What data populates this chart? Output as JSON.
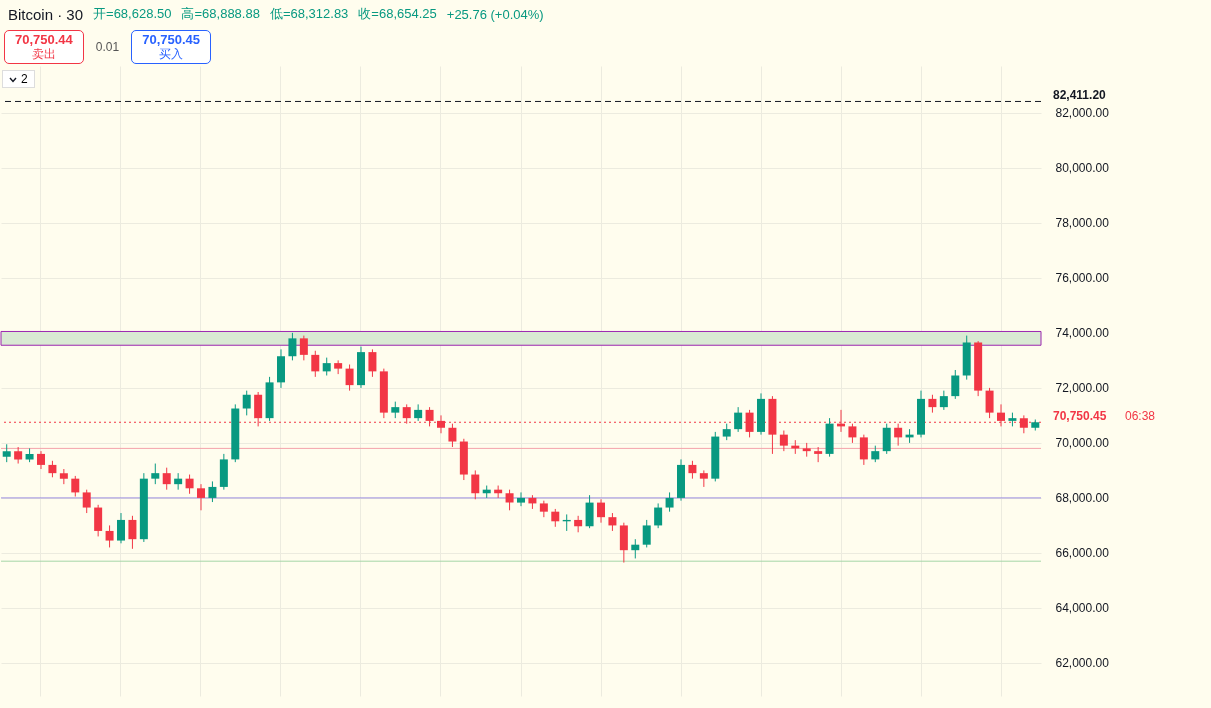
{
  "chart_data": {
    "type": "candlestick",
    "title": "Bitcoin · 30",
    "annotations": [
      "开=68,628.50",
      "高=68,888.88",
      "低=68,312.83",
      "收=68,654.25",
      "+25.76 (+0.04%)",
      "70,750.44",
      "卖出",
      "0.01",
      "70,750.45",
      "买入",
      "2",
      "06:38"
    ],
    "categories": [
      null,
      null,
      null,
      null,
      null,
      null,
      null,
      null,
      null,
      null,
      null,
      null,
      null,
      null,
      null,
      null,
      null,
      null,
      null,
      null,
      null,
      null,
      null,
      null,
      null,
      null,
      null,
      null,
      null,
      null,
      null,
      null,
      null,
      null,
      null,
      null,
      null,
      null,
      null,
      null,
      null,
      null,
      null,
      null,
      null,
      null,
      null,
      null,
      null,
      null,
      null,
      null,
      null,
      null,
      null,
      null,
      null,
      null,
      null,
      null,
      null,
      null,
      null,
      null,
      null,
      null,
      null,
      null,
      null,
      null,
      null,
      null,
      null,
      null,
      null,
      null,
      null,
      null,
      null,
      null,
      null,
      null,
      null,
      null,
      null,
      null,
      null,
      null,
      null,
      null,
      null
    ],
    "ohlc": [
      [
        69500,
        69950,
        69300,
        69700
      ],
      [
        69700,
        69850,
        69250,
        69400
      ],
      [
        69400,
        69800,
        69300,
        69600
      ],
      [
        69600,
        69700,
        69050,
        69200
      ],
      [
        69200,
        69350,
        68750,
        68900
      ],
      [
        68900,
        69050,
        68500,
        68700
      ],
      [
        68700,
        68800,
        68050,
        68200
      ],
      [
        68200,
        68300,
        67450,
        67650
      ],
      [
        67650,
        67750,
        66600,
        66800
      ],
      [
        66800,
        67000,
        66200,
        66450
      ],
      [
        66450,
        67450,
        66350,
        67200
      ],
      [
        67200,
        67350,
        66150,
        66500
      ],
      [
        66500,
        68900,
        66400,
        68700
      ],
      [
        68700,
        69250,
        68500,
        68900
      ],
      [
        68900,
        69100,
        68300,
        68500
      ],
      [
        68500,
        68900,
        68300,
        68700
      ],
      [
        68700,
        68850,
        68150,
        68350
      ],
      [
        68350,
        68500,
        67550,
        68000
      ],
      [
        68000,
        68600,
        67850,
        68400
      ],
      [
        68400,
        69600,
        68300,
        69400
      ],
      [
        69400,
        71400,
        69300,
        71250
      ],
      [
        71250,
        71900,
        71000,
        71750
      ],
      [
        71750,
        71850,
        70600,
        70900
      ],
      [
        70900,
        72400,
        70800,
        72200
      ],
      [
        72200,
        73400,
        72000,
        73150
      ],
      [
        73150,
        74000,
        73000,
        73800
      ],
      [
        73800,
        73900,
        73000,
        73200
      ],
      [
        73200,
        73350,
        72400,
        72600
      ],
      [
        72600,
        73100,
        72450,
        72900
      ],
      [
        72900,
        73000,
        72500,
        72700
      ],
      [
        72700,
        72850,
        71900,
        72100
      ],
      [
        72100,
        73500,
        72000,
        73300
      ],
      [
        73300,
        73400,
        72400,
        72600
      ],
      [
        72600,
        72700,
        70900,
        71100
      ],
      [
        71100,
        71500,
        70900,
        71300
      ],
      [
        71300,
        71400,
        70700,
        70900
      ],
      [
        70900,
        71400,
        70800,
        71200
      ],
      [
        71200,
        71300,
        70600,
        70800
      ],
      [
        70800,
        71000,
        70350,
        70550
      ],
      [
        70550,
        70700,
        69850,
        70050
      ],
      [
        70050,
        70150,
        68650,
        68850
      ],
      [
        68850,
        69000,
        67950,
        68170
      ],
      [
        68170,
        68450,
        68000,
        68300
      ],
      [
        68300,
        68450,
        68000,
        68170
      ],
      [
        68170,
        68300,
        67550,
        67830
      ],
      [
        67830,
        68200,
        67700,
        68000
      ],
      [
        68000,
        68100,
        67600,
        67800
      ],
      [
        67800,
        67900,
        67300,
        67500
      ],
      [
        67500,
        67600,
        66950,
        67150
      ],
      [
        67150,
        67400,
        66800,
        67200
      ],
      [
        67200,
        67350,
        66750,
        66970
      ],
      [
        66970,
        68100,
        66900,
        67830
      ],
      [
        67830,
        67950,
        67100,
        67300
      ],
      [
        67300,
        67450,
        66800,
        67000
      ],
      [
        67000,
        67100,
        65650,
        66100
      ],
      [
        66100,
        66500,
        65800,
        66300
      ],
      [
        66300,
        67200,
        66200,
        67000
      ],
      [
        67000,
        67800,
        66900,
        67650
      ],
      [
        67650,
        68200,
        67500,
        68000
      ],
      [
        68000,
        69400,
        67900,
        69200
      ],
      [
        69200,
        69350,
        68700,
        68900
      ],
      [
        68900,
        69000,
        68400,
        68700
      ],
      [
        68700,
        70400,
        68600,
        70230
      ],
      [
        70230,
        70700,
        70100,
        70500
      ],
      [
        70500,
        71300,
        70400,
        71100
      ],
      [
        71100,
        71200,
        70200,
        70400
      ],
      [
        70400,
        71800,
        70300,
        71600
      ],
      [
        71600,
        71700,
        69600,
        70300
      ],
      [
        70300,
        70450,
        69700,
        69900
      ],
      [
        69900,
        70100,
        69600,
        69800
      ],
      [
        69800,
        70000,
        69500,
        69700
      ],
      [
        69700,
        69850,
        69300,
        69600
      ],
      [
        69600,
        70900,
        69500,
        70700
      ],
      [
        70700,
        71200,
        70400,
        70600
      ],
      [
        70600,
        70700,
        70000,
        70200
      ],
      [
        70200,
        70300,
        69200,
        69400
      ],
      [
        69400,
        69900,
        69300,
        69700
      ],
      [
        69700,
        70700,
        69600,
        70550
      ],
      [
        70550,
        70700,
        69900,
        70200
      ],
      [
        70200,
        70500,
        70000,
        70300
      ],
      [
        70300,
        71900,
        70200,
        71600
      ],
      [
        71600,
        71750,
        71100,
        71300
      ],
      [
        71300,
        71900,
        71200,
        71700
      ],
      [
        71700,
        72650,
        71600,
        72450
      ],
      [
        72450,
        73900,
        72300,
        73650
      ],
      [
        73650,
        73700,
        71700,
        71900
      ],
      [
        71900,
        72000,
        70900,
        71100
      ],
      [
        71100,
        71400,
        70600,
        70800
      ],
      [
        70800,
        71100,
        70600,
        70900
      ],
      [
        70900,
        71000,
        70350,
        70550
      ],
      [
        70550,
        70850,
        70450,
        70750
      ]
    ],
    "ylim": [
      60800,
      83700
    ],
    "yticks": [
      {
        "value": 62000,
        "label": "62,000.00"
      },
      {
        "value": 64000,
        "label": "64,000.00"
      },
      {
        "value": 66000,
        "label": "66,000.00"
      },
      {
        "value": 68000,
        "label": "68,000.00"
      },
      {
        "value": 70000,
        "label": "70,000.00"
      },
      {
        "value": 72000,
        "label": "72,000.00"
      },
      {
        "value": 74000,
        "label": "74,000.00"
      },
      {
        "value": 76000,
        "label": "76,000.00"
      },
      {
        "value": 78000,
        "label": "78,000.00"
      },
      {
        "value": 80000,
        "label": "80,000.00"
      },
      {
        "value": 82000,
        "label": "82,000.00"
      }
    ],
    "tick_labels": "y",
    "grid": true,
    "ref_lines": [
      {
        "axis": "y",
        "value": 82411.2,
        "label": "82,411.20",
        "color": "#131722",
        "line_style": "dashed"
      },
      {
        "axis": "y",
        "value": 70750.45,
        "label": "70,750.45",
        "color": "#f23645",
        "line_style": "dotted"
      },
      {
        "axis": "y",
        "value": 69800,
        "color": "#f4a3aa",
        "line_style": "solid"
      },
      {
        "axis": "y",
        "value": 68000,
        "color": "#9b8fe0",
        "line_style": "solid"
      },
      {
        "axis": "y",
        "value": 65700,
        "color": "#a5d6a7",
        "line_style": "solid"
      }
    ],
    "bands": [
      {
        "axis": "y",
        "from": 73550,
        "to": 74050,
        "color": "#d9ead3"
      }
    ]
  }
}
